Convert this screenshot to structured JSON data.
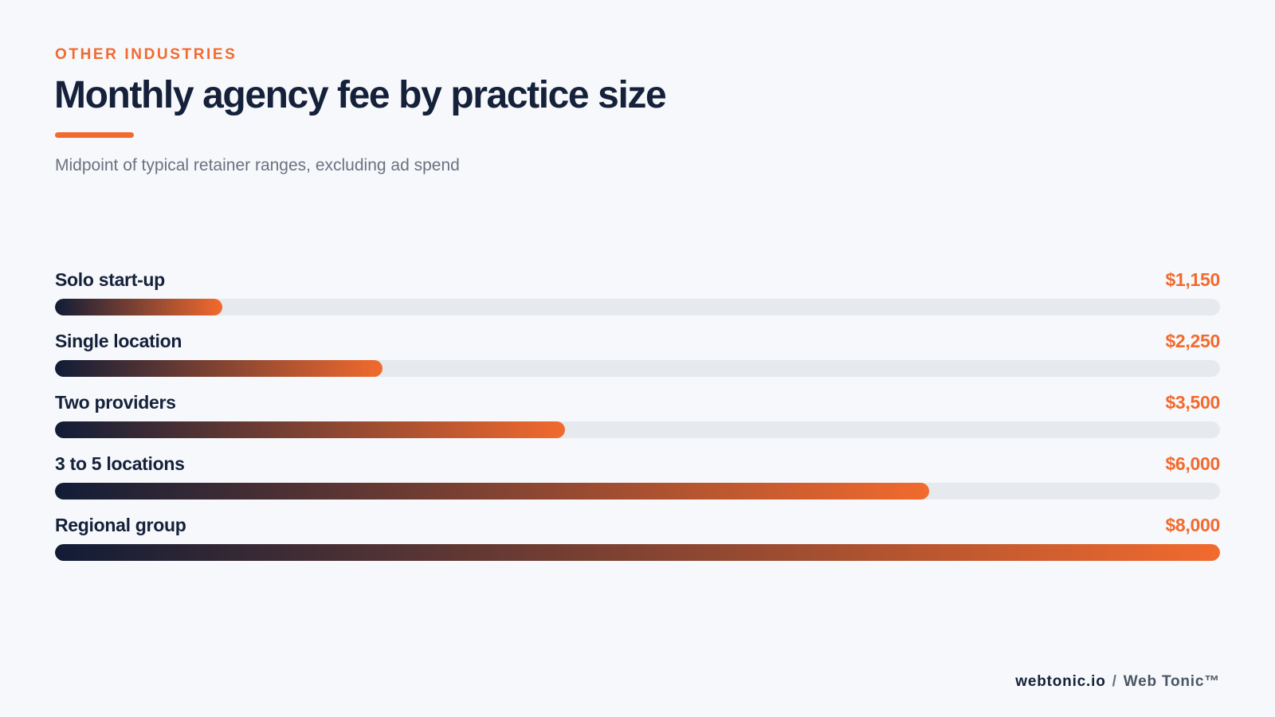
{
  "eyebrow": "OTHER INDUSTRIES",
  "accent_color": "#f26a2e",
  "chart_data": {
    "type": "bar",
    "orientation": "horizontal",
    "title": "Monthly agency fee by practice size",
    "subtitle": "Midpoint of typical retainer ranges, excluding ad spend",
    "categories": [
      "Solo start-up",
      "Single location",
      "Two providers",
      "3 to 5 locations",
      "Regional group"
    ],
    "values": [
      1150,
      2250,
      3500,
      6000,
      8000
    ],
    "value_labels": [
      "$1,150",
      "$2,250",
      "$3,500",
      "$6,000",
      "$8,000"
    ],
    "xlim": [
      0,
      8000
    ],
    "grid": false,
    "bar_gradient": [
      "#111c36",
      "#f26a2e"
    ],
    "track_color": "#e6e9ee"
  },
  "footer": {
    "domain": "webtonic.io",
    "separator": "/",
    "brand": "Web Tonic™"
  }
}
